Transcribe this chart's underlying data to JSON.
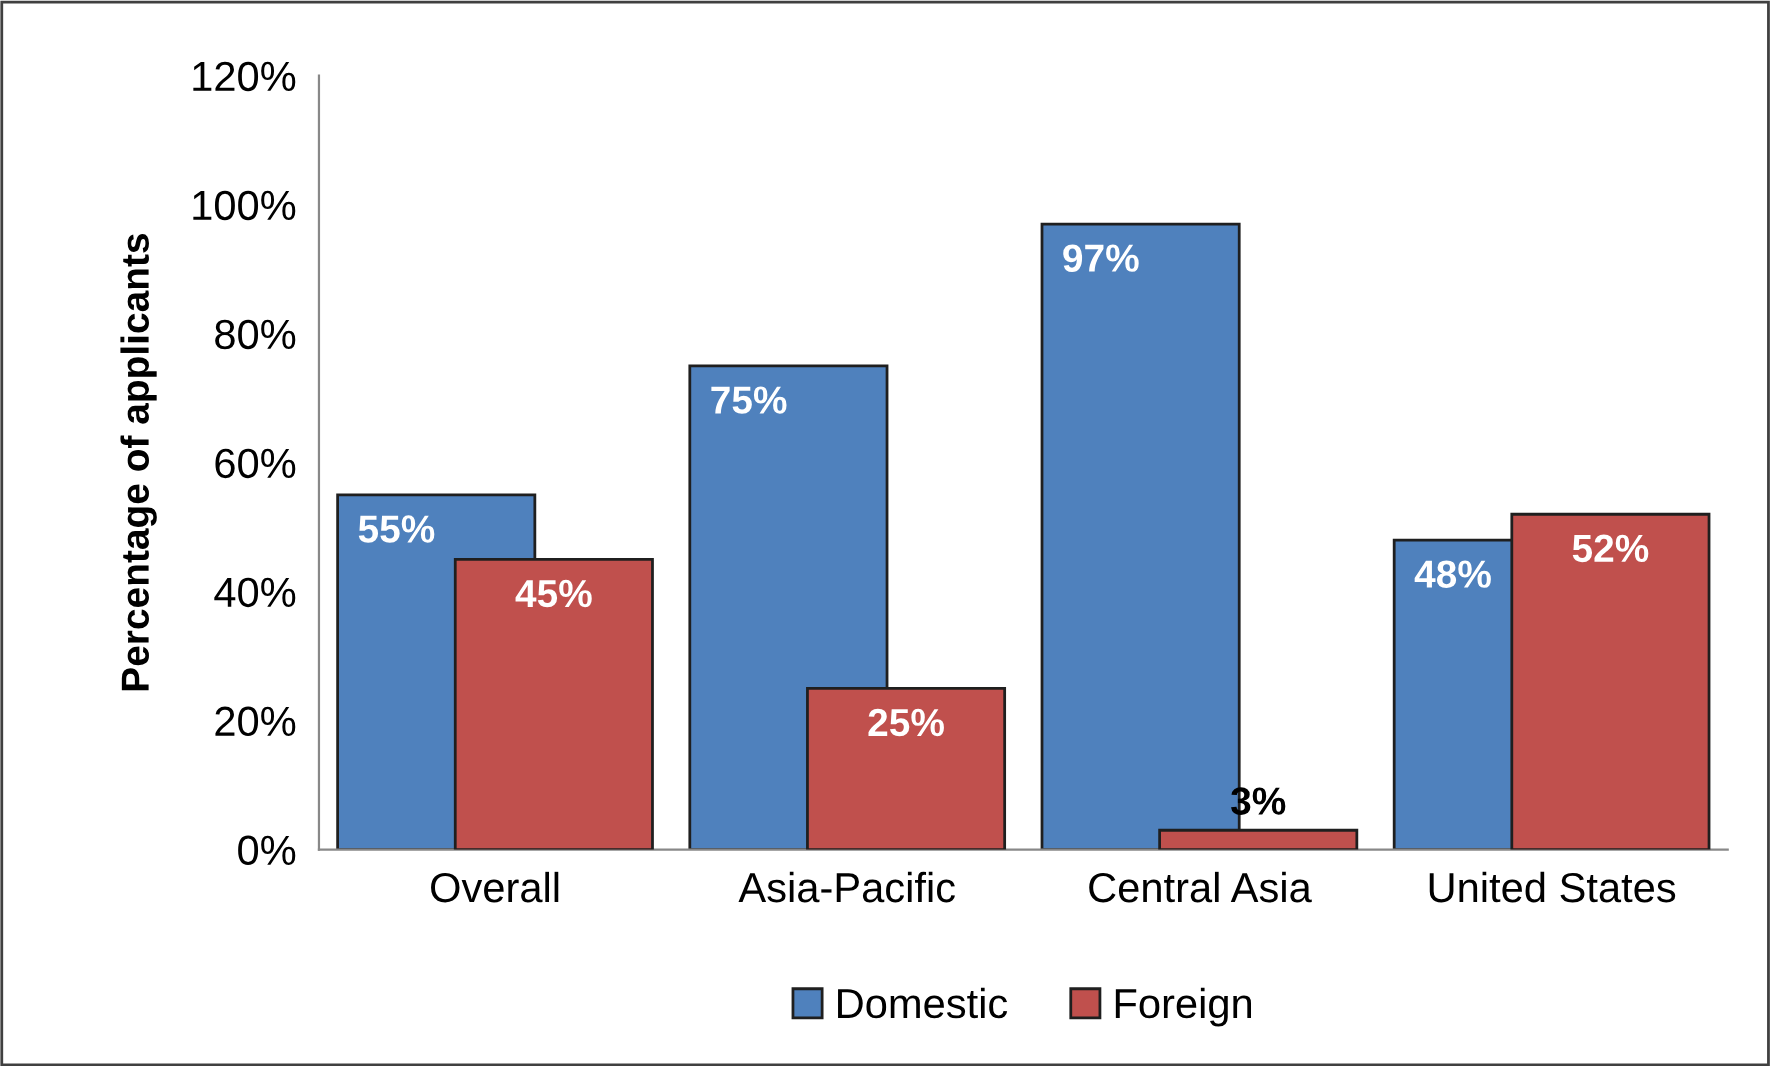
{
  "chart_data": {
    "type": "bar",
    "ylabel": "Percentage of applicants",
    "categories": [
      "Overall",
      "Asia-Pacific",
      "Central Asia",
      "United States"
    ],
    "series": [
      {
        "name": "Domestic",
        "color": "#4f81bd",
        "values": [
          55,
          75,
          97,
          48
        ],
        "value_labels": [
          "55%",
          "75%",
          "97%",
          "48%"
        ]
      },
      {
        "name": "Foreign",
        "color": "#c0504d",
        "values": [
          45,
          25,
          3,
          52
        ],
        "value_labels": [
          "45%",
          "25%",
          "3%",
          "52%"
        ]
      }
    ],
    "ylim": [
      0,
      120
    ],
    "yticks": [
      {
        "value": 0,
        "label": "0%"
      },
      {
        "value": 20,
        "label": "20%"
      },
      {
        "value": 40,
        "label": "40%"
      },
      {
        "value": 60,
        "label": "60%"
      },
      {
        "value": 80,
        "label": "80%"
      },
      {
        "value": 100,
        "label": "100%"
      },
      {
        "value": 120,
        "label": "120%"
      }
    ],
    "grid": false,
    "legend": "bottom"
  }
}
